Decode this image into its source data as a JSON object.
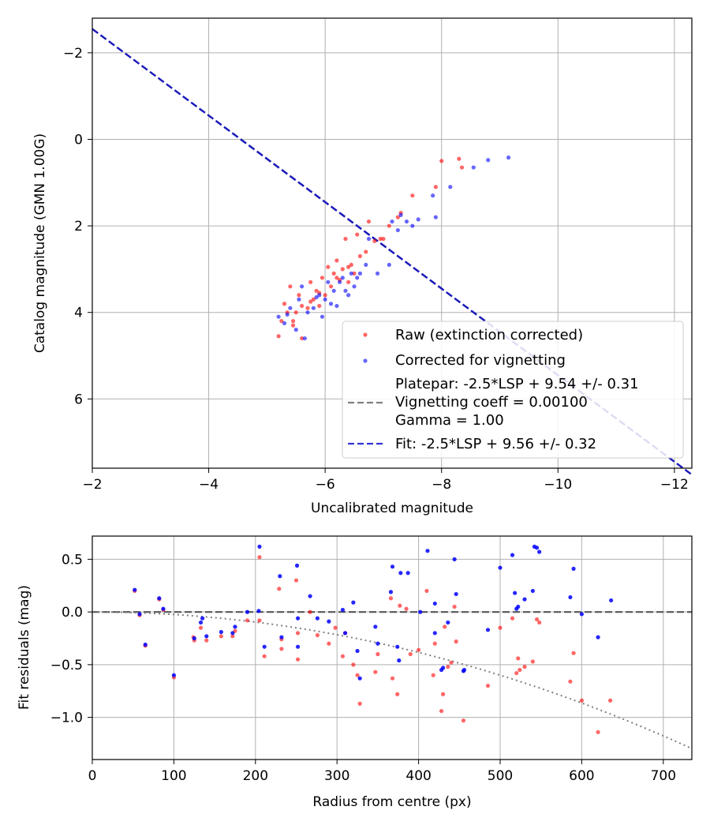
{
  "chart_data": [
    {
      "type": "scatter",
      "xlabel": "Uncalibrated magnitude",
      "ylabel": "Catalog magnitude (GMN 1.00G)",
      "xlim": [
        -2,
        -12.3
      ],
      "ylim": [
        7.6,
        -2.8
      ],
      "xticks": [
        -2,
        -4,
        -6,
        -8,
        -10,
        -12
      ],
      "xtick_labels": [
        "−2",
        "−4",
        "−6",
        "−8",
        "−10",
        "−12"
      ],
      "yticks": [
        -2,
        0,
        2,
        4,
        6
      ],
      "ytick_labels": [
        "−2",
        "0",
        "2",
        "4",
        "6"
      ],
      "grid": true,
      "legend_position": "bottom-right",
      "colors": {
        "raw": "#ff0000",
        "corrected": "#0000ff",
        "platepar": "#808080",
        "fit": "#0000cc"
      },
      "series": [
        {
          "name": "Raw (extinction corrected)",
          "color": "#ff0000",
          "points": [
            [
              -5.2,
              4.55
            ],
            [
              -5.3,
              3.8
            ],
            [
              -5.4,
              3.4
            ],
            [
              -5.45,
              4.2
            ],
            [
              -5.5,
              4.0
            ],
            [
              -5.55,
              3.6
            ],
            [
              -5.6,
              4.6
            ],
            [
              -5.7,
              3.9
            ],
            [
              -5.75,
              3.3
            ],
            [
              -5.8,
              3.7
            ],
            [
              -5.85,
              3.5
            ],
            [
              -5.9,
              3.85
            ],
            [
              -5.95,
              3.2
            ],
            [
              -6.0,
              3.6
            ],
            [
              -6.05,
              2.95
            ],
            [
              -6.1,
              3.4
            ],
            [
              -6.15,
              3.1
            ],
            [
              -6.2,
              2.8
            ],
            [
              -6.25,
              3.25
            ],
            [
              -6.3,
              3.0
            ],
            [
              -6.35,
              2.3
            ],
            [
              -6.4,
              3.3
            ],
            [
              -6.45,
              2.9
            ],
            [
              -6.5,
              3.1
            ],
            [
              -6.55,
              2.2
            ],
            [
              -6.6,
              2.7
            ],
            [
              -6.7,
              2.6
            ],
            [
              -6.75,
              1.9
            ],
            [
              -6.85,
              2.35
            ],
            [
              -6.95,
              2.3
            ],
            [
              -7.1,
              2.0
            ],
            [
              -7.25,
              1.8
            ],
            [
              -7.3,
              1.7
            ],
            [
              -7.5,
              1.3
            ],
            [
              -7.9,
              1.1
            ],
            [
              -8.0,
              0.5
            ],
            [
              -8.3,
              0.45
            ],
            [
              -8.35,
              0.65
            ],
            [
              -5.25,
              4.2
            ],
            [
              -5.35,
              4.0
            ],
            [
              -5.6,
              3.85
            ],
            [
              -5.9,
              3.55
            ],
            [
              -6.2,
              3.2
            ],
            [
              -6.4,
              2.95
            ],
            [
              -7.0,
              2.3
            ],
            [
              -5.45,
              4.3
            ],
            [
              -5.75,
              3.75
            ]
          ]
        },
        {
          "name": "Corrected for vignetting",
          "color": "#0000ff",
          "points": [
            [
              -5.2,
              4.1
            ],
            [
              -5.3,
              4.25
            ],
            [
              -5.4,
              3.9
            ],
            [
              -5.5,
              4.4
            ],
            [
              -5.55,
              3.7
            ],
            [
              -5.6,
              3.4
            ],
            [
              -5.65,
              4.6
            ],
            [
              -5.7,
              4.0
            ],
            [
              -5.8,
              3.9
            ],
            [
              -5.9,
              3.6
            ],
            [
              -5.95,
              4.1
            ],
            [
              -6.0,
              3.7
            ],
            [
              -6.05,
              3.3
            ],
            [
              -6.1,
              3.8
            ],
            [
              -6.15,
              3.5
            ],
            [
              -6.2,
              3.85
            ],
            [
              -6.3,
              3.2
            ],
            [
              -6.35,
              3.5
            ],
            [
              -6.4,
              3.6
            ],
            [
              -6.45,
              3.1
            ],
            [
              -6.5,
              3.4
            ],
            [
              -6.6,
              3.1
            ],
            [
              -6.7,
              2.9
            ],
            [
              -6.75,
              2.3
            ],
            [
              -6.9,
              3.1
            ],
            [
              -7.1,
              2.9
            ],
            [
              -7.15,
              1.9
            ],
            [
              -7.25,
              2.1
            ],
            [
              -7.3,
              1.75
            ],
            [
              -7.4,
              1.9
            ],
            [
              -7.5,
              2.0
            ],
            [
              -7.6,
              1.85
            ],
            [
              -7.85,
              1.3
            ],
            [
              -7.9,
              1.8
            ],
            [
              -8.15,
              1.1
            ],
            [
              -8.55,
              0.65
            ],
            [
              -8.8,
              0.48
            ],
            [
              -9.15,
              0.42
            ],
            [
              -5.35,
              4.05
            ],
            [
              -5.85,
              3.65
            ],
            [
              -6.25,
              3.3
            ],
            [
              -6.55,
              3.2
            ]
          ]
        }
      ],
      "lines": [
        {
          "name": "Platepar: -2.5*LSP + 9.54 +/- 0.31\nVignetting coeff = 0.00100\nGamma = 1.00",
          "style": "dashed",
          "color": "#808080",
          "slope": -1,
          "intercept": -4.55
        },
        {
          "name": "Fit: -2.5*LSP + 9.56 +/- 0.32",
          "style": "dashed",
          "color": "#0000cc",
          "slope": -1,
          "intercept": -4.55
        }
      ],
      "legend": [
        "Raw (extinction corrected)",
        "Corrected for vignetting",
        "Platepar: -2.5*LSP + 9.54 +/- 0.31",
        "Vignetting coeff = 0.00100",
        "Gamma = 1.00",
        "Fit: -2.5*LSP + 9.56 +/- 0.32"
      ]
    },
    {
      "type": "scatter",
      "xlabel": "Radius from centre (px)",
      "ylabel": "Fit residuals (mag)",
      "xlim": [
        0,
        735
      ],
      "ylim": [
        -1.4,
        0.72
      ],
      "xticks": [
        0,
        100,
        200,
        300,
        400,
        500,
        600,
        700
      ],
      "xtick_labels": [
        "0",
        "100",
        "200",
        "300",
        "400",
        "500",
        "600",
        "700"
      ],
      "yticks": [
        0.5,
        0.0,
        -0.5,
        -1.0
      ],
      "ytick_labels": [
        "0.5",
        "0.0",
        "−0.5",
        "−1.0"
      ],
      "grid": true,
      "hline": 0.0,
      "vignetting_curve": {
        "coeff": 2.4e-06,
        "x_range": [
          0,
          732
        ]
      },
      "series": [
        {
          "name": "Raw",
          "color": "#ff0000",
          "points": [
            [
              52,
              0.2
            ],
            [
              58,
              -0.03
            ],
            [
              65,
              -0.32
            ],
            [
              82,
              0.12
            ],
            [
              87,
              0.02
            ],
            [
              100,
              -0.62
            ],
            [
              125,
              -0.27
            ],
            [
              133,
              -0.15
            ],
            [
              140,
              -0.27
            ],
            [
              158,
              -0.23
            ],
            [
              172,
              -0.23
            ],
            [
              175,
              -0.18
            ],
            [
              190,
              -0.08
            ],
            [
              205,
              0.52
            ],
            [
              211,
              -0.42
            ],
            [
              229,
              0.22
            ],
            [
              232,
              -0.35
            ],
            [
              250,
              0.3
            ],
            [
              252,
              -0.2
            ],
            [
              252,
              -0.45
            ],
            [
              267,
              0.0
            ],
            [
              276,
              -0.22
            ],
            [
              290,
              -0.3
            ],
            [
              307,
              -0.42
            ],
            [
              310,
              -0.2
            ],
            [
              320,
              -0.5
            ],
            [
              325,
              -0.6
            ],
            [
              328,
              -0.87
            ],
            [
              347,
              -0.57
            ],
            [
              350,
              -0.4
            ],
            [
              366,
              0.13
            ],
            [
              368,
              -0.63
            ],
            [
              374,
              -0.78
            ],
            [
              385,
              0.03
            ],
            [
              390,
              -0.4
            ],
            [
              410,
              0.2
            ],
            [
              418,
              -0.6
            ],
            [
              420,
              -0.3
            ],
            [
              428,
              -0.94
            ],
            [
              430,
              -0.78
            ],
            [
              436,
              -0.52
            ],
            [
              444,
              0.05
            ],
            [
              446,
              -0.28
            ],
            [
              455,
              -1.03
            ],
            [
              485,
              -0.7
            ],
            [
              500,
              -0.15
            ],
            [
              515,
              -0.06
            ],
            [
              520,
              -0.58
            ],
            [
              522,
              -0.44
            ],
            [
              530,
              -0.52
            ],
            [
              540,
              -0.47
            ],
            [
              545,
              -0.07
            ],
            [
              586,
              -0.66
            ],
            [
              590,
              -0.39
            ],
            [
              600,
              -0.84
            ],
            [
              620,
              -1.14
            ],
            [
              635,
              -0.84
            ],
            [
              124,
              -0.24
            ],
            [
              205,
              -0.08
            ],
            [
              232,
              -0.26
            ],
            [
              298,
              -0.15
            ],
            [
              377,
              0.06
            ],
            [
              400,
              -0.36
            ],
            [
              432,
              -0.14
            ],
            [
              440,
              -0.48
            ],
            [
              524,
              -0.55
            ],
            [
              548,
              -0.1
            ]
          ]
        },
        {
          "name": "Corrected",
          "color": "#0000ff",
          "points": [
            [
              52,
              0.21
            ],
            [
              58,
              -0.02
            ],
            [
              65,
              -0.31
            ],
            [
              82,
              0.13
            ],
            [
              87,
              0.03
            ],
            [
              100,
              -0.6
            ],
            [
              125,
              -0.25
            ],
            [
              133,
              -0.1
            ],
            [
              135,
              -0.06
            ],
            [
              140,
              -0.23
            ],
            [
              158,
              -0.19
            ],
            [
              172,
              -0.2
            ],
            [
              175,
              -0.14
            ],
            [
              190,
              0.0
            ],
            [
              204,
              0.01
            ],
            [
              205,
              0.62
            ],
            [
              211,
              -0.33
            ],
            [
              230,
              0.34
            ],
            [
              232,
              -0.24
            ],
            [
              251,
              0.44
            ],
            [
              252,
              -0.06
            ],
            [
              252,
              -0.33
            ],
            [
              267,
              0.15
            ],
            [
              276,
              -0.06
            ],
            [
              290,
              -0.09
            ],
            [
              307,
              0.02
            ],
            [
              310,
              -0.2
            ],
            [
              320,
              0.09
            ],
            [
              325,
              -0.37
            ],
            [
              328,
              -0.63
            ],
            [
              347,
              -0.14
            ],
            [
              350,
              -0.3
            ],
            [
              366,
              0.19
            ],
            [
              368,
              0.43
            ],
            [
              374,
              -0.33
            ],
            [
              376,
              -0.46
            ],
            [
              378,
              0.37
            ],
            [
              387,
              0.37
            ],
            [
              402,
              0.0
            ],
            [
              411,
              0.58
            ],
            [
              420,
              -0.2
            ],
            [
              420,
              0.08
            ],
            [
              428,
              -0.55
            ],
            [
              436,
              -0.1
            ],
            [
              444,
              0.5
            ],
            [
              446,
              0.17
            ],
            [
              455,
              -0.56
            ],
            [
              485,
              -0.17
            ],
            [
              500,
              0.42
            ],
            [
              515,
              0.54
            ],
            [
              518,
              0.18
            ],
            [
              520,
              0.03
            ],
            [
              522,
              0.05
            ],
            [
              530,
              0.12
            ],
            [
              540,
              0.2
            ],
            [
              542,
              0.62
            ],
            [
              545,
              0.61
            ],
            [
              548,
              0.57
            ],
            [
              586,
              0.14
            ],
            [
              590,
              0.41
            ],
            [
              600,
              -0.02
            ],
            [
              620,
              -0.24
            ],
            [
              636,
              0.11
            ],
            [
              430,
              -0.53
            ],
            [
              456,
              -0.55
            ]
          ]
        }
      ]
    }
  ]
}
